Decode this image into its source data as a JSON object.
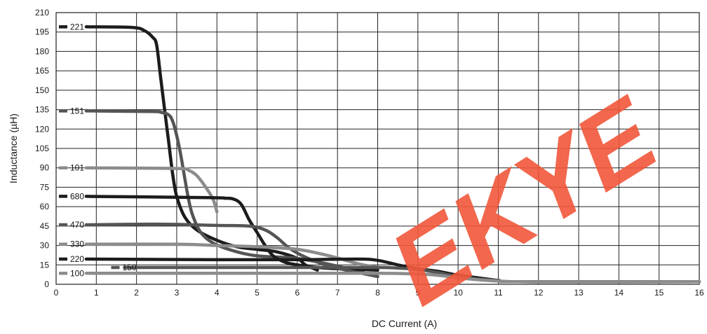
{
  "chart_data": {
    "type": "line",
    "xlabel": "DC Current (A)",
    "ylabel": "Inductance (µH)",
    "xlim": [
      0,
      16
    ],
    "ylim": [
      0,
      210
    ],
    "xticks": [
      0,
      1,
      2,
      3,
      4,
      5,
      6,
      7,
      8,
      9,
      10,
      11,
      12,
      13,
      14,
      15,
      16
    ],
    "yticks": [
      0,
      15,
      30,
      45,
      60,
      75,
      90,
      105,
      120,
      135,
      150,
      165,
      180,
      195,
      210
    ],
    "grid": true,
    "series": [
      {
        "name": "221",
        "color": "#1c1c1c",
        "points": [
          [
            0.75,
            199
          ],
          [
            1.9,
            198.5
          ],
          [
            2.2,
            196
          ],
          [
            2.4,
            191
          ],
          [
            2.5,
            185
          ],
          [
            2.6,
            160
          ],
          [
            2.7,
            135
          ],
          [
            2.8,
            110
          ],
          [
            2.9,
            85
          ],
          [
            3.0,
            68
          ],
          [
            3.2,
            52
          ],
          [
            3.5,
            42
          ],
          [
            4.0,
            34
          ],
          [
            4.5,
            29
          ],
          [
            5.0,
            27
          ],
          [
            5.5,
            25
          ],
          [
            6.0,
            20
          ],
          [
            6.2,
            15
          ],
          [
            6.5,
            11
          ]
        ]
      },
      {
        "name": "151",
        "color": "#555555",
        "points": [
          [
            0.75,
            134
          ],
          [
            2.4,
            133.5
          ],
          [
            2.6,
            133
          ],
          [
            2.8,
            131
          ],
          [
            2.9,
            126
          ],
          [
            3.0,
            115
          ],
          [
            3.1,
            100
          ],
          [
            3.2,
            82
          ],
          [
            3.3,
            65
          ],
          [
            3.4,
            53
          ],
          [
            3.6,
            40
          ],
          [
            3.9,
            32
          ],
          [
            4.4,
            26
          ],
          [
            5.0,
            22
          ],
          [
            6.0,
            20
          ],
          [
            7.0,
            14
          ],
          [
            8.0,
            6
          ]
        ]
      },
      {
        "name": "101",
        "color": "#8c8c8c",
        "points": [
          [
            0.75,
            90
          ],
          [
            3.0,
            89.5
          ],
          [
            3.3,
            88
          ],
          [
            3.5,
            84
          ],
          [
            3.7,
            76
          ],
          [
            3.9,
            66
          ],
          [
            4.0,
            56
          ]
        ]
      },
      {
        "name": "680",
        "color": "#1c1c1c",
        "points": [
          [
            0.75,
            68
          ],
          [
            3.8,
            67
          ],
          [
            4.2,
            66.5
          ],
          [
            4.4,
            66
          ],
          [
            4.6,
            62
          ],
          [
            4.8,
            50
          ],
          [
            5.0,
            40
          ],
          [
            5.2,
            30
          ],
          [
            5.4,
            22
          ],
          [
            5.7,
            17
          ],
          [
            6.0,
            15
          ],
          [
            6.5,
            13
          ],
          [
            7.0,
            12
          ],
          [
            8.0,
            11
          ]
        ]
      },
      {
        "name": "470",
        "color": "#555555",
        "points": [
          [
            0.75,
            46
          ],
          [
            2.5,
            46.5
          ],
          [
            4.0,
            45.5
          ],
          [
            4.8,
            45
          ],
          [
            5.2,
            42
          ],
          [
            5.5,
            36
          ],
          [
            5.8,
            28
          ],
          [
            6.2,
            21
          ],
          [
            6.7,
            15
          ],
          [
            7.2,
            11
          ],
          [
            8.0,
            6
          ]
        ]
      },
      {
        "name": "330",
        "color": "#8c8c8c",
        "points": [
          [
            0.75,
            31
          ],
          [
            3.0,
            31
          ],
          [
            4.0,
            30
          ],
          [
            5.0,
            29
          ],
          [
            6.0,
            27
          ],
          [
            6.8,
            22
          ],
          [
            7.5,
            16
          ],
          [
            8.0,
            13
          ]
        ]
      },
      {
        "name": "220",
        "color": "#1c1c1c",
        "points": [
          [
            0.75,
            19.5
          ],
          [
            4.0,
            19
          ],
          [
            6.0,
            19
          ],
          [
            7.5,
            19.5
          ],
          [
            8.0,
            18.5
          ],
          [
            8.5,
            15
          ],
          [
            9.0,
            12
          ],
          [
            9.5,
            10
          ],
          [
            10.0,
            7
          ],
          [
            10.5,
            5
          ],
          [
            11.0,
            3
          ],
          [
            11.5,
            2
          ],
          [
            16.0,
            2
          ]
        ]
      },
      {
        "name": "150",
        "color": "#555555",
        "points": [
          [
            1.7,
            13
          ],
          [
            4.0,
            13
          ],
          [
            6.0,
            13
          ],
          [
            8.0,
            13
          ],
          [
            8.5,
            12.5
          ],
          [
            9.0,
            11.5
          ],
          [
            9.5,
            9
          ],
          [
            10.0,
            6
          ],
          [
            10.5,
            4
          ],
          [
            11.0,
            3
          ],
          [
            11.5,
            2
          ],
          [
            16.0,
            2
          ]
        ]
      },
      {
        "name": "100",
        "color": "#8c8c8c",
        "points": [
          [
            0.75,
            8.5
          ],
          [
            4.0,
            8.5
          ],
          [
            6.0,
            8.5
          ],
          [
            8.0,
            8.5
          ],
          [
            9.0,
            8
          ],
          [
            9.5,
            7
          ],
          [
            10.0,
            5
          ],
          [
            10.5,
            3.5
          ],
          [
            11.0,
            2.5
          ],
          [
            11.5,
            2
          ],
          [
            16.0,
            2
          ]
        ]
      }
    ],
    "labels": [
      {
        "text": "221",
        "x": 0,
        "y": 199,
        "color": "#1c1c1c"
      },
      {
        "text": "151",
        "x": 0,
        "y": 134,
        "color": "#555555"
      },
      {
        "text": "101",
        "x": 0,
        "y": 90,
        "color": "#8c8c8c"
      },
      {
        "text": "680",
        "x": 0,
        "y": 68,
        "color": "#1c1c1c"
      },
      {
        "text": "470",
        "x": 0,
        "y": 46,
        "color": "#555555"
      },
      {
        "text": "330",
        "x": 0,
        "y": 31,
        "color": "#8c8c8c"
      },
      {
        "text": "220",
        "x": 0,
        "y": 19.5,
        "color": "#1c1c1c"
      },
      {
        "text": "150",
        "x": 1.3,
        "y": 13,
        "color": "#555555"
      },
      {
        "text": "100",
        "x": 0,
        "y": 8.5,
        "color": "#8c8c8c"
      }
    ]
  },
  "watermark": {
    "text": "EKYE",
    "color": "#f1573a"
  }
}
